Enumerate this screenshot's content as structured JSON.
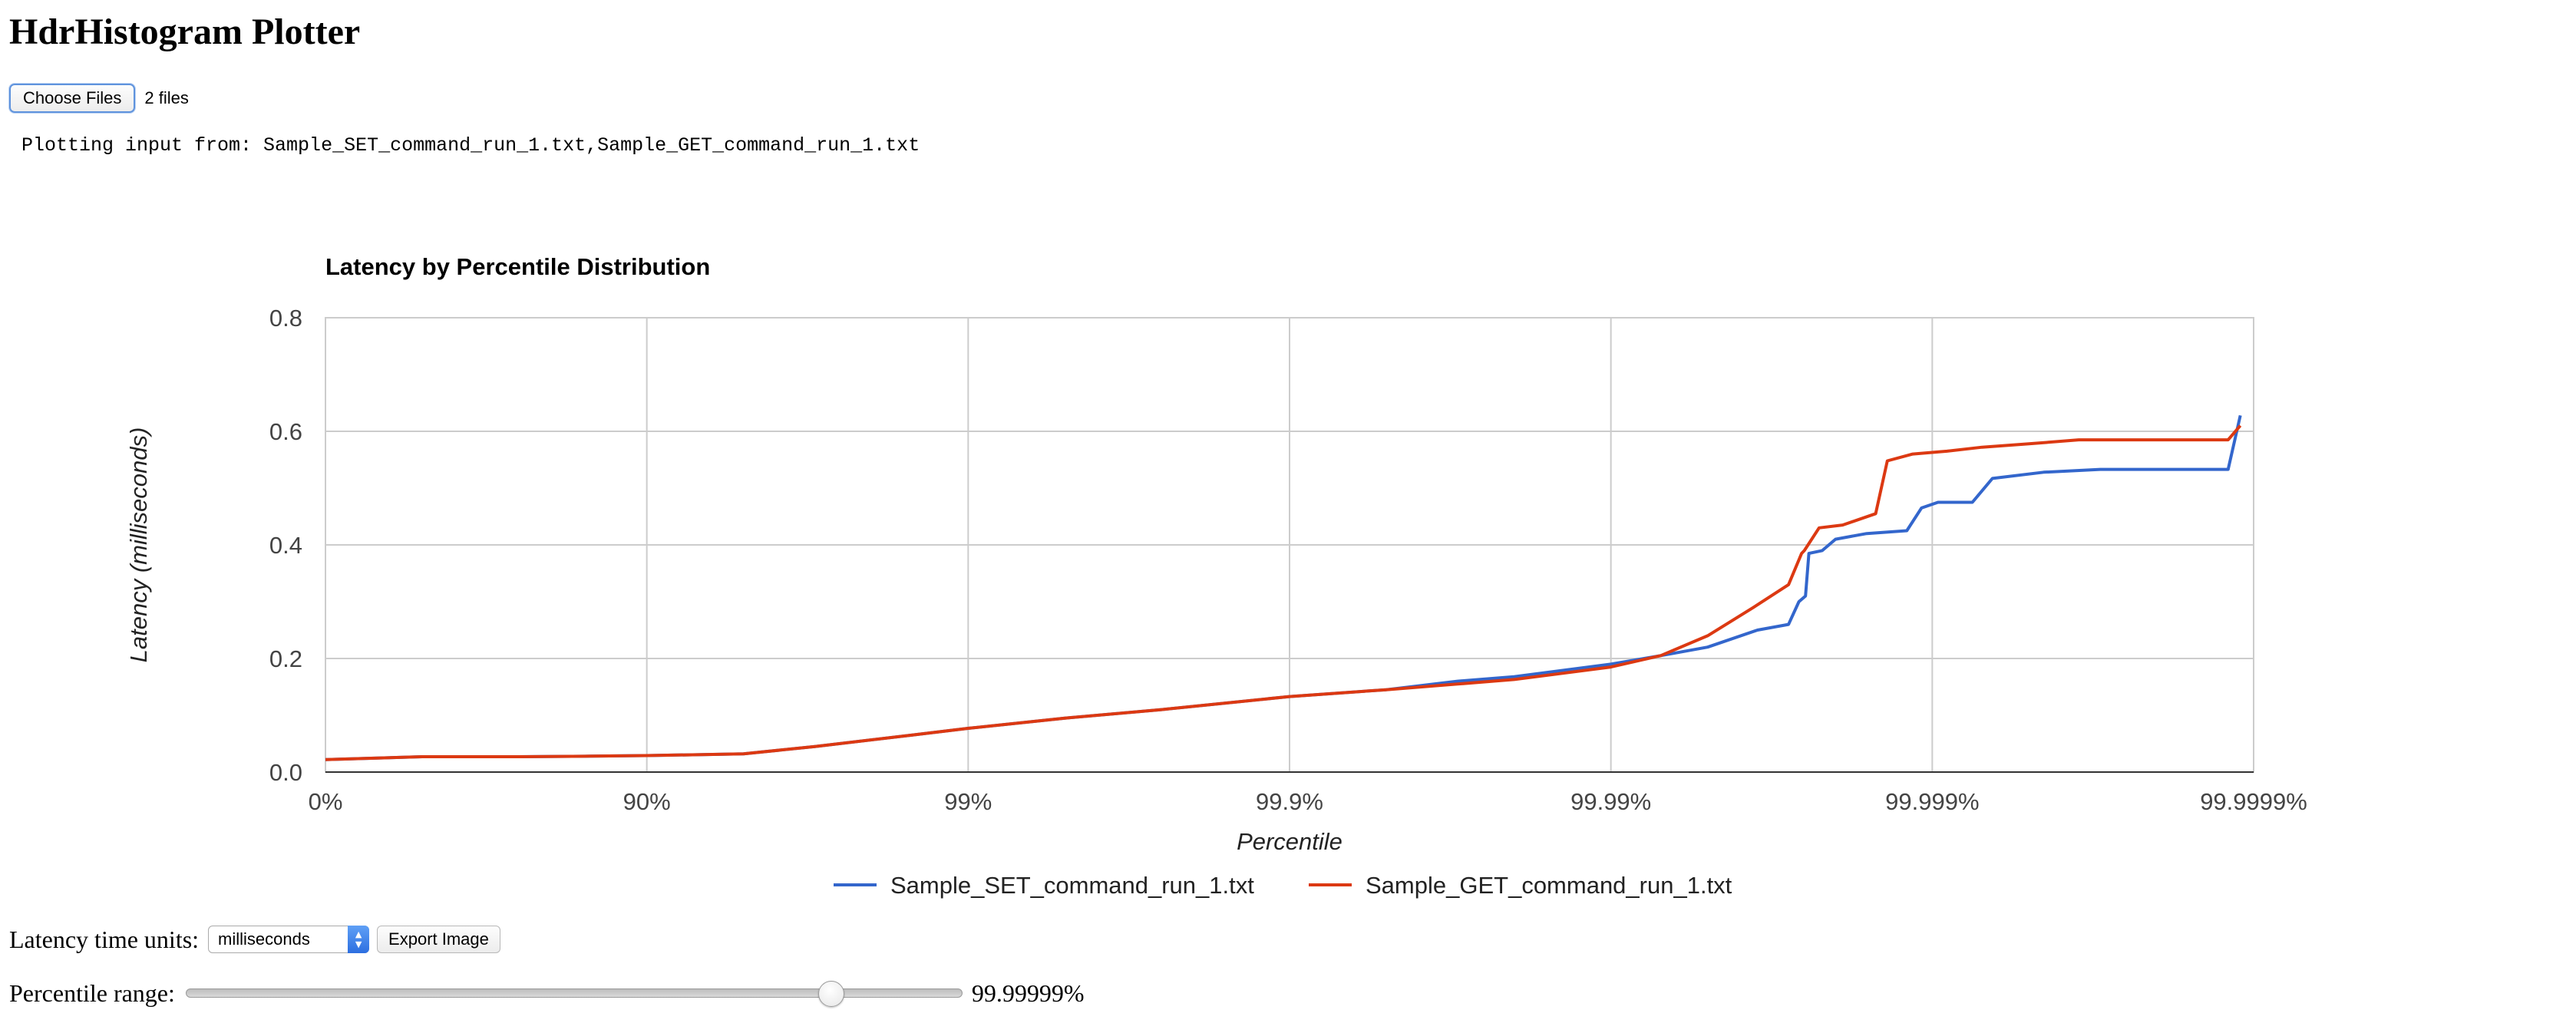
{
  "page": {
    "title": "HdrHistogram Plotter"
  },
  "file_input": {
    "button_label": "Choose Files",
    "status": "2 files"
  },
  "plot_input": "Plotting input from: Sample_SET_command_run_1.txt,Sample_GET_command_run_1.txt",
  "controls": {
    "units_label": "Latency time units:",
    "units_value": "milliseconds",
    "units_arrows_icon": "select-arrows-icon",
    "export_label": "Export Image",
    "range_label": "Percentile range:",
    "range_value": "99.99999%",
    "range_fraction": 0.84
  },
  "chart_data": {
    "type": "line",
    "title": "Latency by Percentile Distribution",
    "xlabel": "Percentile",
    "ylabel": "Latency (milliseconds)",
    "x_scale": "log10(1/(1-percentile))",
    "x_tick_labels": [
      "0%",
      "90%",
      "99%",
      "99.9%",
      "99.99%",
      "99.999%",
      "99.9999%"
    ],
    "x_tick_values": [
      0,
      90,
      99,
      99.9,
      99.99,
      99.999,
      99.9999
    ],
    "y_ticks": [
      0.0,
      0.2,
      0.4,
      0.6,
      0.8
    ],
    "y_tick_labels": [
      "0.0",
      "0.2",
      "0.4",
      "0.6",
      "0.8"
    ],
    "ylim": [
      0,
      0.8
    ],
    "grid": true,
    "legend_position": "bottom",
    "series": [
      {
        "name": "Sample_SET_command_run_1.txt",
        "color": "#3366cc",
        "points": [
          [
            0,
            0.022
          ],
          [
            50,
            0.027
          ],
          [
            75,
            0.027
          ],
          [
            85,
            0.028
          ],
          [
            90,
            0.029
          ],
          [
            95,
            0.032
          ],
          [
            97,
            0.045
          ],
          [
            98.5,
            0.065
          ],
          [
            99,
            0.077
          ],
          [
            99.5,
            0.095
          ],
          [
            99.75,
            0.11
          ],
          [
            99.9,
            0.133
          ],
          [
            99.95,
            0.145
          ],
          [
            99.97,
            0.16
          ],
          [
            99.98,
            0.168
          ],
          [
            99.99,
            0.19
          ],
          [
            99.993,
            0.205
          ],
          [
            99.995,
            0.22
          ],
          [
            99.9965,
            0.25
          ],
          [
            99.9972,
            0.26
          ],
          [
            99.9974,
            0.3
          ],
          [
            99.99752,
            0.31
          ],
          [
            99.99758,
            0.385
          ],
          [
            99.9978,
            0.39
          ],
          [
            99.998,
            0.41
          ],
          [
            99.9984,
            0.42
          ],
          [
            99.9988,
            0.425
          ],
          [
            99.99892,
            0.465
          ],
          [
            99.99904,
            0.475
          ],
          [
            99.99925,
            0.475
          ],
          [
            99.99935,
            0.517
          ],
          [
            99.99955,
            0.528
          ],
          [
            99.9997,
            0.533
          ],
          [
            99.99985,
            0.533
          ],
          [
            99.99988,
            0.533
          ],
          [
            99.99989,
            0.628
          ]
        ]
      },
      {
        "name": "Sample_GET_command_run_1.txt",
        "color": "#dc3912",
        "points": [
          [
            0,
            0.022
          ],
          [
            50,
            0.027
          ],
          [
            75,
            0.027
          ],
          [
            85,
            0.028
          ],
          [
            90,
            0.029
          ],
          [
            95,
            0.032
          ],
          [
            97,
            0.045
          ],
          [
            98.5,
            0.065
          ],
          [
            99,
            0.077
          ],
          [
            99.5,
            0.095
          ],
          [
            99.75,
            0.11
          ],
          [
            99.9,
            0.133
          ],
          [
            99.95,
            0.145
          ],
          [
            99.97,
            0.155
          ],
          [
            99.98,
            0.163
          ],
          [
            99.99,
            0.185
          ],
          [
            99.993,
            0.205
          ],
          [
            99.995,
            0.24
          ],
          [
            99.9964,
            0.29
          ],
          [
            99.9972,
            0.33
          ],
          [
            99.99745,
            0.385
          ],
          [
            99.9975,
            0.39
          ],
          [
            99.99775,
            0.43
          ],
          [
            99.9981,
            0.435
          ],
          [
            99.9985,
            0.455
          ],
          [
            99.99862,
            0.548
          ],
          [
            99.99885,
            0.56
          ],
          [
            99.9991,
            0.565
          ],
          [
            99.9993,
            0.572
          ],
          [
            99.9995,
            0.578
          ],
          [
            99.99965,
            0.585
          ],
          [
            99.99988,
            0.585
          ],
          [
            99.99989,
            0.61
          ]
        ]
      }
    ]
  }
}
